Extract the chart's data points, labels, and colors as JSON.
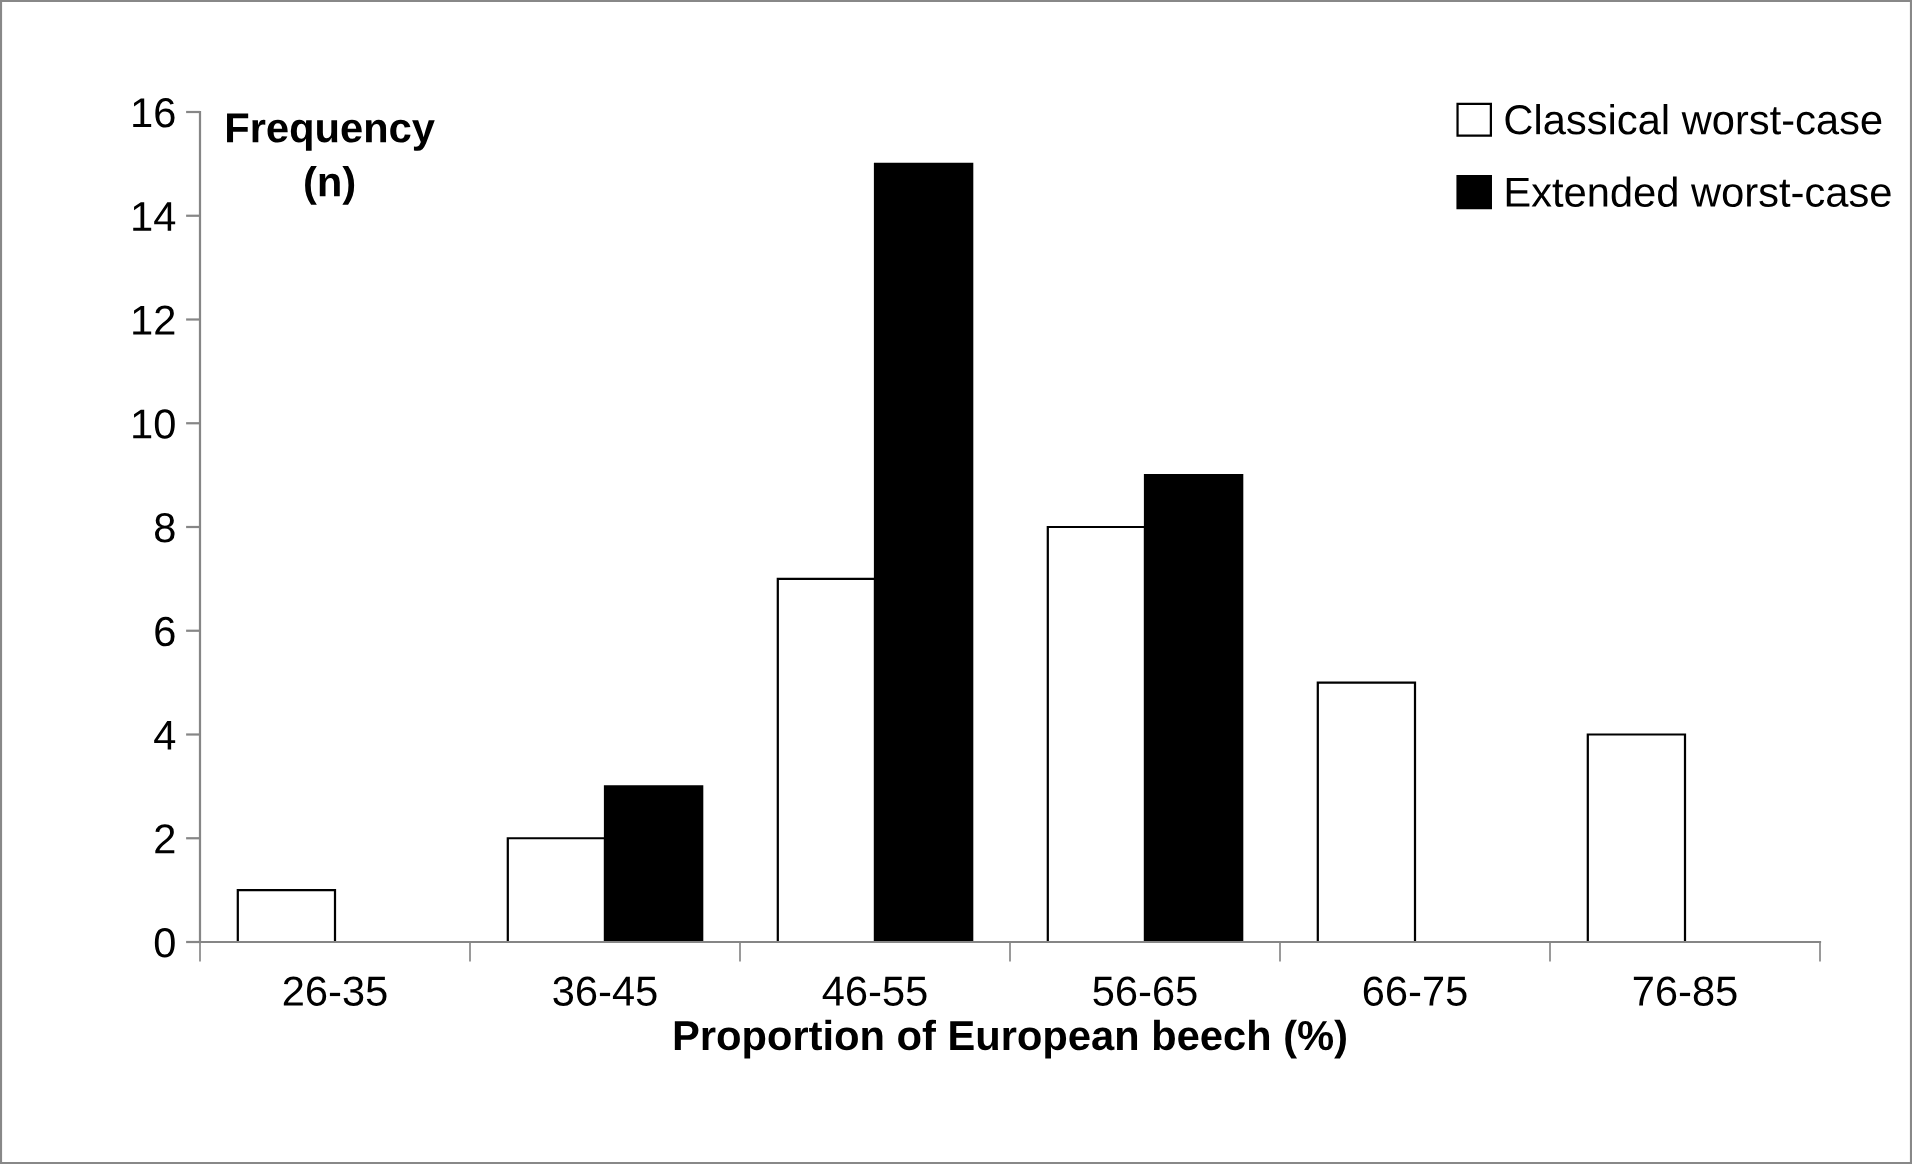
{
  "chart_data": {
    "type": "bar",
    "xlabel": "Proportion of European beech (%)",
    "ylabel": "Frequency\n(n)",
    "categories": [
      "26-35",
      "36-45",
      "46-55",
      "56-65",
      "66-75",
      "76-85"
    ],
    "series": [
      {
        "name": "Classical worst-case",
        "color": "#ffffff",
        "values": [
          1,
          2,
          7,
          8,
          5,
          4
        ]
      },
      {
        "name": "Extended worst-case",
        "color": "#000000",
        "values": [
          0,
          3,
          15,
          9,
          0,
          0
        ]
      }
    ],
    "ylim": [
      0,
      16
    ],
    "yticks": [
      0,
      2,
      4,
      6,
      8,
      10,
      12,
      14,
      16
    ],
    "grid": false,
    "legend": "top right"
  }
}
